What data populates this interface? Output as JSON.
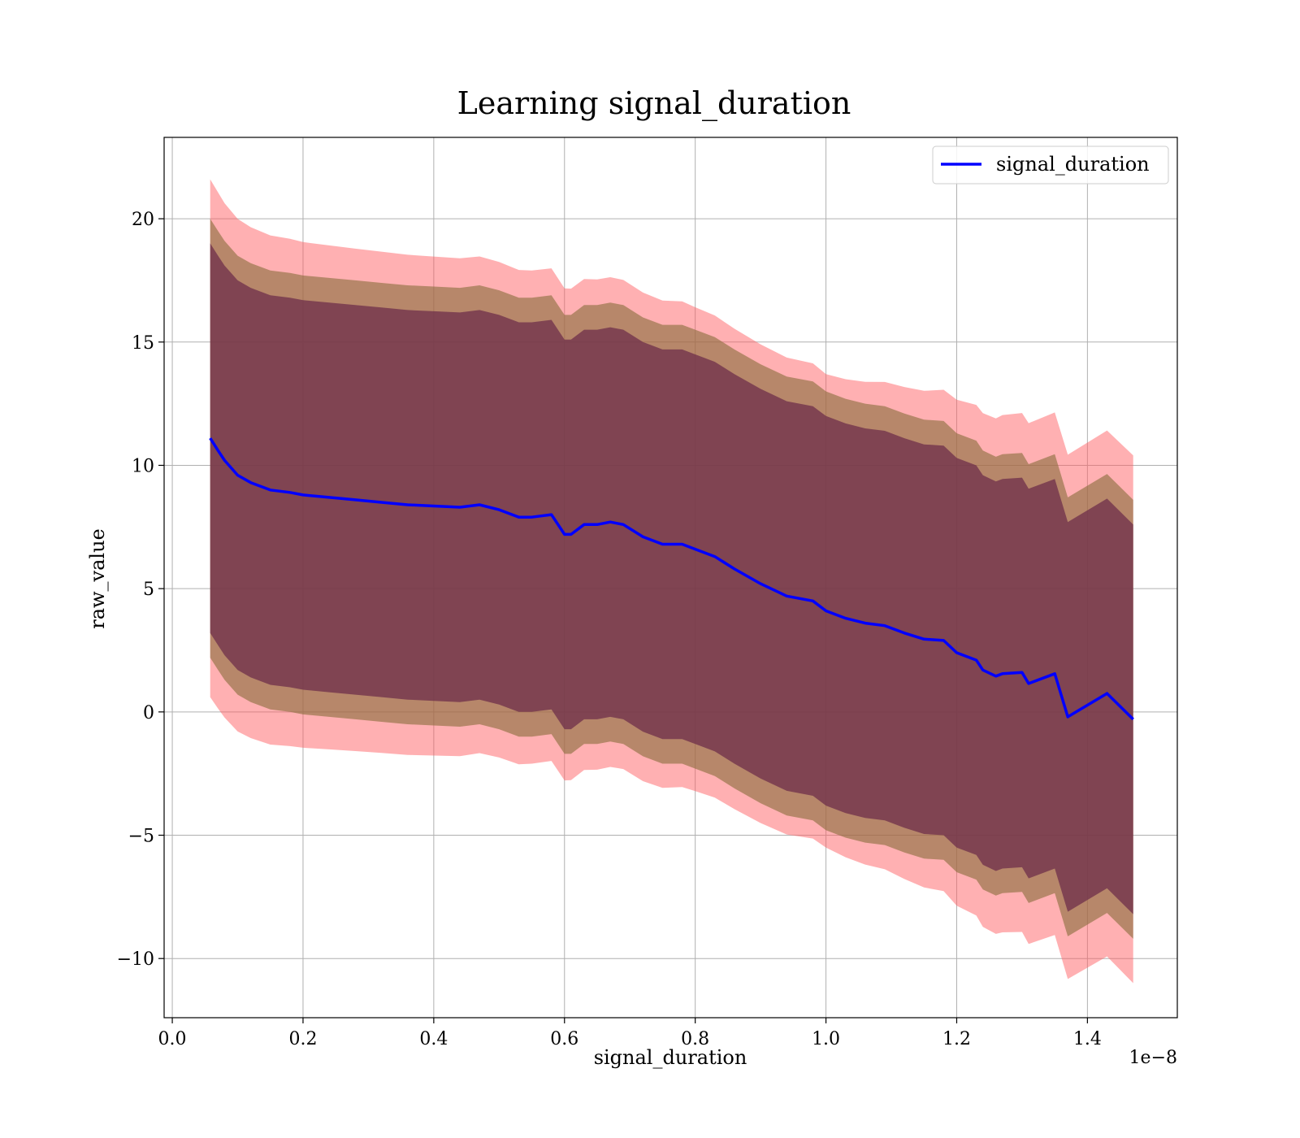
{
  "chart_data": {
    "type": "line",
    "title": "Learning signal_duration",
    "xlabel": "signal_duration",
    "ylabel": "raw_value",
    "x_offset_text": "1e−8",
    "x_scale": 1e-08,
    "xlim": [
      -0.0125,
      1.5375
    ],
    "ylim": [
      -12.4,
      23.3
    ],
    "xticks": [
      0.0,
      0.2,
      0.4,
      0.6,
      0.8,
      1.0,
      1.2,
      1.4
    ],
    "xtick_labels": [
      "0.0",
      "0.2",
      "0.4",
      "0.6",
      "0.8",
      "1.0",
      "1.2",
      "1.4"
    ],
    "yticks": [
      -10,
      -5,
      0,
      5,
      10,
      15,
      20
    ],
    "ytick_labels": [
      "−10",
      "−5",
      "0",
      "5",
      "10",
      "15",
      "20"
    ],
    "grid": true,
    "legend_position": "top-right",
    "colors": {
      "line": "#0000ff",
      "band_outer": "#ff5a5f",
      "band_middle": "#8b6e3e",
      "band_inner": "#6b2b4a",
      "grid": "#b0b0b0"
    },
    "series": [
      {
        "name": "signal_duration",
        "x": [
          0.058,
          0.07,
          0.08,
          0.1,
          0.12,
          0.15,
          0.18,
          0.2,
          0.24,
          0.28,
          0.32,
          0.36,
          0.4,
          0.44,
          0.47,
          0.5,
          0.53,
          0.55,
          0.58,
          0.6,
          0.61,
          0.63,
          0.65,
          0.67,
          0.69,
          0.72,
          0.75,
          0.78,
          0.8,
          0.83,
          0.86,
          0.9,
          0.94,
          0.98,
          1.0,
          1.03,
          1.06,
          1.09,
          1.12,
          1.15,
          1.18,
          1.2,
          1.23,
          1.24,
          1.26,
          1.27,
          1.3,
          1.31,
          1.35,
          1.37,
          1.43,
          1.47
        ],
        "values": [
          11.1,
          10.6,
          10.2,
          9.6,
          9.3,
          9.0,
          8.9,
          8.8,
          8.7,
          8.6,
          8.5,
          8.4,
          8.35,
          8.3,
          8.4,
          8.2,
          7.9,
          7.9,
          8.0,
          7.2,
          7.2,
          7.6,
          7.6,
          7.7,
          7.6,
          7.1,
          6.8,
          6.8,
          6.6,
          6.3,
          5.8,
          5.2,
          4.7,
          4.5,
          4.1,
          3.8,
          3.6,
          3.5,
          3.2,
          2.95,
          2.9,
          2.4,
          2.1,
          1.7,
          1.45,
          1.55,
          1.6,
          1.15,
          1.55,
          -0.2,
          0.75,
          -0.3
        ]
      }
    ],
    "bands": [
      {
        "name": "outer",
        "upper_delta": [
          10.5,
          10.2,
          10.0,
          9.9,
          9.6,
          10.4,
          10.7
        ],
        "lower_delta": [
          -10.5,
          -10.2,
          -10.0,
          -9.9,
          -9.6,
          -10.4,
          -10.7
        ]
      },
      {
        "name": "middle",
        "upper_delta": 8.9,
        "lower_delta": -8.9
      },
      {
        "name": "inner",
        "upper_delta": 7.9,
        "lower_delta": -7.9
      }
    ]
  }
}
